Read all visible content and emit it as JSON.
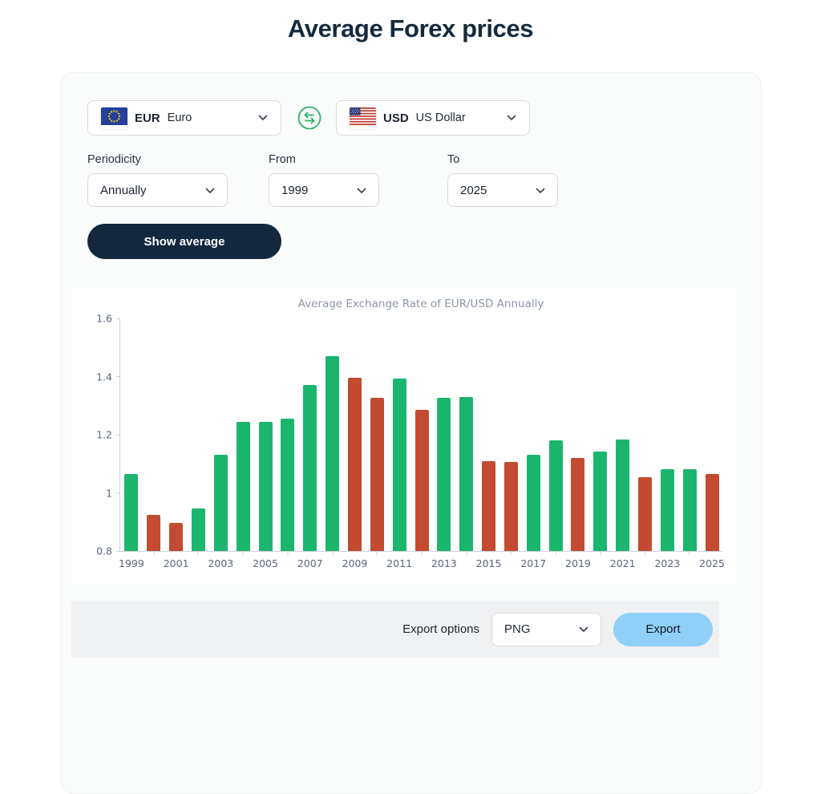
{
  "page": {
    "title": "Average Forex prices"
  },
  "converter": {
    "base": {
      "code": "EUR",
      "name": "Euro",
      "flag": "eu-flag"
    },
    "quote": {
      "code": "USD",
      "name": "US Dollar",
      "flag": "us-flag"
    },
    "swap_icon": "swap-arrows",
    "periodicity": {
      "label": "Periodicity",
      "value": "Annually"
    },
    "from": {
      "label": "From",
      "value": "1999"
    },
    "to": {
      "label": "To",
      "value": "2025"
    },
    "show_average_label": "Show average"
  },
  "chart_data": {
    "type": "bar",
    "title": "Average Exchange Rate of EUR/USD Annually",
    "xlabel": "",
    "ylabel": "",
    "x": [
      1999,
      2000,
      2001,
      2002,
      2003,
      2004,
      2005,
      2006,
      2007,
      2008,
      2009,
      2010,
      2011,
      2012,
      2013,
      2014,
      2015,
      2016,
      2017,
      2018,
      2019,
      2020,
      2021,
      2022,
      2023,
      2024,
      2025
    ],
    "values": [
      1.066,
      0.924,
      0.896,
      0.946,
      1.131,
      1.244,
      1.245,
      1.256,
      1.371,
      1.471,
      1.395,
      1.327,
      1.392,
      1.285,
      1.328,
      1.329,
      1.11,
      1.107,
      1.13,
      1.181,
      1.12,
      1.142,
      1.183,
      1.053,
      1.081,
      1.082,
      1.066
    ],
    "trend": [
      "up",
      "down",
      "down",
      "up",
      "up",
      "up",
      "up",
      "up",
      "up",
      "up",
      "down",
      "down",
      "up",
      "down",
      "up",
      "up",
      "down",
      "down",
      "up",
      "up",
      "down",
      "up",
      "up",
      "down",
      "up",
      "up",
      "down"
    ],
    "colors": {
      "up": "#1cb56e",
      "down": "#c24b31"
    },
    "ylim": [
      0.8,
      1.6
    ],
    "yticks": [
      "0.8",
      "1",
      "1.2",
      "1.4",
      "1.6"
    ],
    "xtick_label_years": [
      1999,
      2001,
      2003,
      2005,
      2007,
      2009,
      2011,
      2013,
      2015,
      2017,
      2019,
      2021,
      2023,
      2025
    ],
    "grid": false,
    "legend": false
  },
  "export": {
    "label": "Export options",
    "format": "PNG",
    "button_label": "Export"
  },
  "colors": {
    "accent_navy": "#13283d",
    "accent_green": "#25b567",
    "export_blue": "#90d0f8",
    "bar_up": "#1cb56e",
    "bar_down": "#c24b31"
  }
}
